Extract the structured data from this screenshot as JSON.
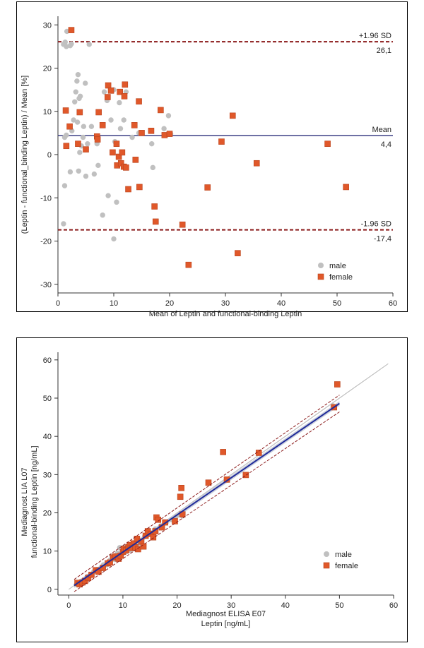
{
  "chart_data": [
    {
      "type": "scatter",
      "title": "",
      "xlabel": "Mean of Leptin and functional-binding Leptin",
      "ylabel": "(Leptin - functional_binding Leptin) / Mean [%]",
      "xlim": [
        0,
        60
      ],
      "ylim": [
        -32,
        32
      ],
      "xticks": [
        "0",
        "10",
        "20",
        "30",
        "40",
        "50",
        "60"
      ],
      "yticks": [
        "30",
        "20",
        "10",
        "0",
        "-10",
        "-20",
        "-30"
      ],
      "grid": false,
      "legend_position": "bottom-right",
      "reference_lines": [
        {
          "label": "+1.96 SD",
          "value": 26.1,
          "value_label": "26,1",
          "color": "#8b1a1a",
          "style": "dashed"
        },
        {
          "label": "Mean",
          "value": 4.4,
          "value_label": "4,4",
          "color": "#2a2f7a",
          "style": "solid"
        },
        {
          "label": "-1.96 SD",
          "value": -17.4,
          "value_label": "-17,4",
          "color": "#8b1a1a",
          "style": "dashed"
        }
      ],
      "series": [
        {
          "name": "male",
          "marker": "circle",
          "color": "#c0c0c0",
          "points": [
            [
              1.0,
              25.5
            ],
            [
              1.3,
              26.0
            ],
            [
              1.6,
              28.5
            ],
            [
              1.5,
              25.0
            ],
            [
              2.2,
              25.2
            ],
            [
              2.4,
              25.6
            ],
            [
              1.2,
              4.0
            ],
            [
              1.5,
              4.5
            ],
            [
              1.2,
              -7.2
            ],
            [
              1.0,
              -16.0
            ],
            [
              2.2,
              -4.0
            ],
            [
              2.5,
              5.5
            ],
            [
              2.8,
              8.0
            ],
            [
              3.0,
              12.2
            ],
            [
              3.2,
              14.5
            ],
            [
              3.4,
              17.0
            ],
            [
              3.6,
              18.5
            ],
            [
              3.5,
              7.5
            ],
            [
              3.8,
              13.0
            ],
            [
              4.0,
              13.5
            ],
            [
              3.9,
              0.5
            ],
            [
              4.2,
              2.0
            ],
            [
              4.5,
              4.0
            ],
            [
              4.6,
              6.5
            ],
            [
              4.9,
              16.5
            ],
            [
              5.0,
              -5.0
            ],
            [
              5.3,
              2.5
            ],
            [
              5.6,
              25.5
            ],
            [
              6.0,
              6.5
            ],
            [
              7.0,
              2.5
            ],
            [
              7.2,
              -2.5
            ],
            [
              8.0,
              -14.0
            ],
            [
              8.3,
              14.5
            ],
            [
              8.8,
              12.5
            ],
            [
              9.5,
              8.0
            ],
            [
              10.0,
              15.0
            ],
            [
              10.2,
              3.0
            ],
            [
              10.0,
              -19.5
            ],
            [
              10.5,
              -11.0
            ],
            [
              11.0,
              12.0
            ],
            [
              11.2,
              6.0
            ],
            [
              11.8,
              8.0
            ],
            [
              12.2,
              14.5
            ],
            [
              13.3,
              4.0
            ],
            [
              14.5,
              5.0
            ],
            [
              16.8,
              2.5
            ],
            [
              17.0,
              -3.0
            ],
            [
              19.0,
              6.0
            ],
            [
              19.8,
              9.0
            ],
            [
              20.2,
              4.8
            ],
            [
              6.5,
              -4.5
            ],
            [
              9.0,
              -9.5
            ],
            [
              3.7,
              -3.8
            ]
          ]
        },
        {
          "name": "female",
          "marker": "square",
          "color": "#e0582a",
          "points": [
            [
              2.4,
              28.8
            ],
            [
              1.4,
              10.2
            ],
            [
              1.5,
              2.0
            ],
            [
              2.1,
              6.5
            ],
            [
              3.6,
              2.5
            ],
            [
              3.9,
              9.8
            ],
            [
              5.0,
              1.2
            ],
            [
              7.0,
              4.2
            ],
            [
              7.1,
              3.5
            ],
            [
              7.3,
              9.8
            ],
            [
              8.0,
              6.8
            ],
            [
              9.0,
              16.0
            ],
            [
              8.9,
              13.3
            ],
            [
              9.5,
              14.8
            ],
            [
              9.8,
              0.5
            ],
            [
              10.5,
              2.5
            ],
            [
              10.6,
              -2.5
            ],
            [
              10.9,
              -0.5
            ],
            [
              11.1,
              14.5
            ],
            [
              11.3,
              -2.0
            ],
            [
              11.5,
              0.5
            ],
            [
              11.8,
              -2.8
            ],
            [
              11.9,
              13.5
            ],
            [
              12.0,
              16.2
            ],
            [
              12.2,
              -3.0
            ],
            [
              12.6,
              -8.0
            ],
            [
              13.7,
              6.8
            ],
            [
              13.9,
              -1.2
            ],
            [
              14.5,
              12.3
            ],
            [
              14.6,
              -7.5
            ],
            [
              15.0,
              5.0
            ],
            [
              16.7,
              5.5
            ],
            [
              17.3,
              -12.0
            ],
            [
              17.5,
              -15.5
            ],
            [
              18.4,
              10.3
            ],
            [
              19.1,
              4.5
            ],
            [
              20.0,
              4.8
            ],
            [
              22.3,
              -16.2
            ],
            [
              23.4,
              -25.5
            ],
            [
              26.8,
              -7.6
            ],
            [
              29.3,
              3.0
            ],
            [
              31.3,
              9.0
            ],
            [
              32.2,
              -22.8
            ],
            [
              35.6,
              -2.0
            ],
            [
              48.3,
              2.5
            ],
            [
              51.6,
              -7.5
            ]
          ]
        }
      ]
    },
    {
      "type": "scatter",
      "title": "",
      "xlabel": [
        "Mediagnost ELISA E07",
        "Leptin [ng/mL]"
      ],
      "ylabel": [
        "Mediagnost LIA L07",
        "functional-binding Leptin [ng/mL]"
      ],
      "xlim": [
        -2,
        60
      ],
      "ylim": [
        -1.5,
        62
      ],
      "xticks": [
        "0",
        "10",
        "20",
        "30",
        "40",
        "50",
        "60"
      ],
      "yticks": [
        "60",
        "50",
        "40",
        "30",
        "20",
        "10",
        "0"
      ],
      "grid": false,
      "legend_position": "bottom-right",
      "identity_line": {
        "from": [
          0,
          0
        ],
        "to": [
          59,
          59
        ],
        "color": "#b5b5b5"
      },
      "regression_line": {
        "from": [
          1,
          1.0
        ],
        "to": [
          50,
          48.6
        ],
        "color": "#1f2a9a"
      },
      "confidence_band": {
        "upper": [
          [
            1,
            1.6
          ],
          [
            50,
            49.2
          ]
        ],
        "lower": [
          [
            1,
            0.4
          ],
          [
            50,
            48.0
          ]
        ],
        "color": "#c9cdd8"
      },
      "prediction_interval": {
        "upper": [
          [
            1,
            2.6
          ],
          [
            50,
            50.8
          ]
        ],
        "lower": [
          [
            1,
            -0.6
          ],
          [
            50,
            46.4
          ]
        ],
        "color": "#8b1a1a"
      },
      "series": [
        {
          "name": "male",
          "marker": "circle",
          "color": "#c0c0c0",
          "points": [
            [
              1.4,
              1.2
            ],
            [
              2.0,
              1.8
            ],
            [
              2.6,
              2.3
            ],
            [
              3.4,
              3.3
            ],
            [
              4.0,
              3.8
            ],
            [
              4.6,
              4.6
            ],
            [
              5.2,
              5.2
            ],
            [
              6.0,
              5.5
            ],
            [
              6.4,
              6.4
            ],
            [
              7.0,
              6.4
            ],
            [
              7.6,
              7.6
            ],
            [
              8.0,
              8.6
            ],
            [
              8.5,
              7.8
            ],
            [
              9.0,
              9.5
            ],
            [
              9.4,
              10.9
            ],
            [
              9.8,
              9.0
            ],
            [
              10.2,
              11.0
            ],
            [
              10.6,
              9.8
            ],
            [
              11.0,
              11.2
            ],
            [
              11.4,
              10.2
            ],
            [
              12.0,
              11.8
            ],
            [
              12.6,
              12.5
            ],
            [
              13.0,
              12.0
            ],
            [
              14.0,
              13.8
            ],
            [
              15.0,
              14.5
            ],
            [
              16.0,
              15.8
            ],
            [
              17.0,
              16.6
            ],
            [
              18.0,
              17.5
            ],
            [
              19.0,
              18.2
            ],
            [
              19.8,
              19.0
            ],
            [
              20.4,
              19.5
            ],
            [
              21.0,
              19.2
            ],
            [
              48.8,
              48.0
            ]
          ]
        },
        {
          "name": "female",
          "marker": "square",
          "color": "#e0582a",
          "points": [
            [
              1.6,
              1.7
            ],
            [
              2.0,
              1.3
            ],
            [
              2.5,
              1.8
            ],
            [
              3.0,
              2.2
            ],
            [
              3.6,
              3.0
            ],
            [
              4.2,
              3.8
            ],
            [
              5.0,
              5.0
            ],
            [
              5.5,
              4.6
            ],
            [
              6.3,
              5.6
            ],
            [
              7.2,
              6.8
            ],
            [
              7.6,
              7.0
            ],
            [
              8.2,
              8.3
            ],
            [
              8.6,
              8.6
            ],
            [
              9.2,
              8.0
            ],
            [
              9.6,
              8.8
            ],
            [
              10.0,
              9.8
            ],
            [
              10.2,
              10.6
            ],
            [
              10.6,
              10.2
            ],
            [
              11.0,
              11.0
            ],
            [
              11.3,
              11.6
            ],
            [
              11.6,
              10.8
            ],
            [
              12.0,
              12.0
            ],
            [
              12.3,
              11.0
            ],
            [
              12.6,
              13.2
            ],
            [
              12.8,
              10.5
            ],
            [
              13.4,
              12.5
            ],
            [
              13.8,
              11.2
            ],
            [
              14.2,
              14.0
            ],
            [
              14.6,
              15.2
            ],
            [
              15.2,
              14.5
            ],
            [
              15.6,
              13.6
            ],
            [
              16.0,
              15.2
            ],
            [
              16.2,
              18.8
            ],
            [
              16.5,
              18.2
            ],
            [
              17.2,
              16.2
            ],
            [
              17.8,
              17.5
            ],
            [
              19.6,
              17.8
            ],
            [
              20.6,
              24.2
            ],
            [
              20.8,
              26.5
            ],
            [
              21.0,
              19.6
            ],
            [
              25.8,
              27.9
            ],
            [
              28.5,
              35.9
            ],
            [
              29.2,
              28.7
            ],
            [
              32.7,
              29.9
            ],
            [
              35.1,
              35.7
            ],
            [
              49.0,
              47.6
            ],
            [
              49.6,
              53.6
            ]
          ]
        }
      ]
    }
  ]
}
